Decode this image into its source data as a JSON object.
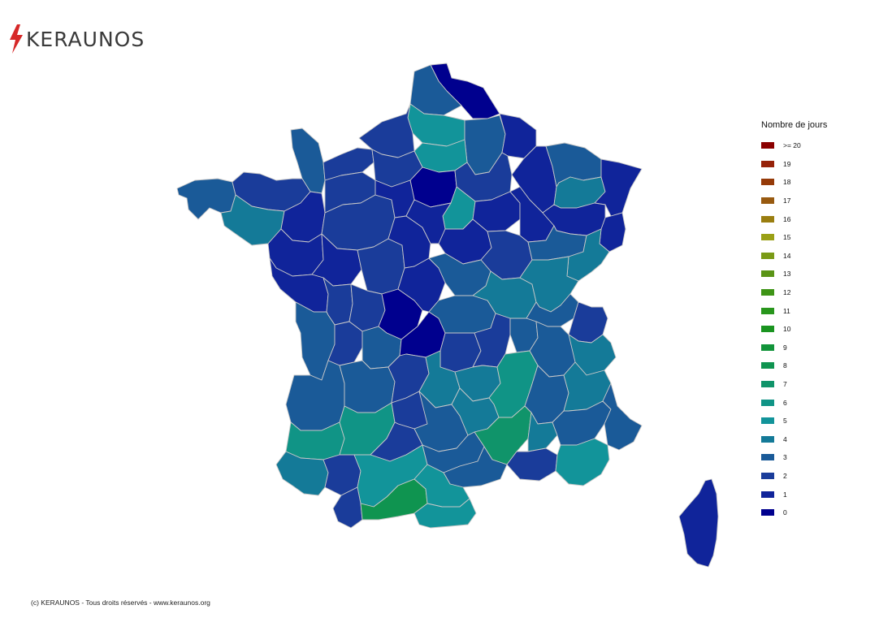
{
  "brand": {
    "name": "KERAUNOS",
    "accent": "#d62828"
  },
  "legend": {
    "title": "Nombre de jours",
    "items": [
      {
        "label": ">= 20",
        "color": "#8b0000"
      },
      {
        "label": "19",
        "color": "#962209"
      },
      {
        "label": "18",
        "color": "#953a08"
      },
      {
        "label": "17",
        "color": "#985a10"
      },
      {
        "label": "16",
        "color": "#9a7e10"
      },
      {
        "label": "15",
        "color": "#9aa016"
      },
      {
        "label": "14",
        "color": "#7a9a16"
      },
      {
        "label": "13",
        "color": "#5a9416"
      },
      {
        "label": "12",
        "color": "#3e9416"
      },
      {
        "label": "11",
        "color": "#28961c"
      },
      {
        "label": "10",
        "color": "#1a9420"
      },
      {
        "label": "9",
        "color": "#12943a"
      },
      {
        "label": "8",
        "color": "#0f9450"
      },
      {
        "label": "7",
        "color": "#10946a"
      },
      {
        "label": "6",
        "color": "#109486"
      },
      {
        "label": "5",
        "color": "#12949a"
      },
      {
        "label": "4",
        "color": "#147a98"
      },
      {
        "label": "3",
        "color": "#1a5a98"
      },
      {
        "label": "2",
        "color": "#1a3c9a"
      },
      {
        "label": "1",
        "color": "#10249a"
      },
      {
        "label": "0",
        "color": "#00008e"
      }
    ]
  },
  "map": {
    "border_color": "#c8c8c8",
    "regions": [
      {
        "name": "nord",
        "value": 0
      },
      {
        "name": "pas-de-calais",
        "value": 3
      },
      {
        "name": "somme",
        "value": 5
      },
      {
        "name": "aisne",
        "value": 3
      },
      {
        "name": "ardennes",
        "value": 1
      },
      {
        "name": "seine-maritime",
        "value": 2
      },
      {
        "name": "oise",
        "value": 5
      },
      {
        "name": "manche",
        "value": 3
      },
      {
        "name": "calvados",
        "value": 2
      },
      {
        "name": "eure",
        "value": 2
      },
      {
        "name": "ile-de-france",
        "value": 0
      },
      {
        "name": "marne",
        "value": 2
      },
      {
        "name": "meuse",
        "value": 1
      },
      {
        "name": "moselle",
        "value": 3
      },
      {
        "name": "meurthe-et-moselle",
        "value": 4
      },
      {
        "name": "bas-rhin",
        "value": 1
      },
      {
        "name": "haut-rhin",
        "value": 1
      },
      {
        "name": "finistere",
        "value": 3
      },
      {
        "name": "cotes-d-armor",
        "value": 2
      },
      {
        "name": "morbihan",
        "value": 4
      },
      {
        "name": "ille-et-vilaine",
        "value": 1
      },
      {
        "name": "orne",
        "value": 2
      },
      {
        "name": "mayenne-sarthe",
        "value": 2
      },
      {
        "name": "eure-et-loir",
        "value": 1
      },
      {
        "name": "seine-et-marne",
        "value": 5
      },
      {
        "name": "aube",
        "value": 1
      },
      {
        "name": "haute-marne",
        "value": 1
      },
      {
        "name": "vosges",
        "value": 1
      },
      {
        "name": "loire-atlantique",
        "value": 1
      },
      {
        "name": "maine-et-loire",
        "value": 1
      },
      {
        "name": "indre-et-loire",
        "value": 2
      },
      {
        "name": "loir-et-cher",
        "value": 1
      },
      {
        "name": "loiret",
        "value": 1
      },
      {
        "name": "yonne",
        "value": 1
      },
      {
        "name": "cote-d-or",
        "value": 2
      },
      {
        "name": "haute-saone",
        "value": 3
      },
      {
        "name": "doubs",
        "value": 4
      },
      {
        "name": "vendee",
        "value": 1
      },
      {
        "name": "deux-sevres",
        "value": 2
      },
      {
        "name": "vienne",
        "value": 2
      },
      {
        "name": "indre",
        "value": 0
      },
      {
        "name": "cher",
        "value": 1
      },
      {
        "name": "nievre",
        "value": 3
      },
      {
        "name": "saone-et-loire",
        "value": 4
      },
      {
        "name": "jura",
        "value": 4
      },
      {
        "name": "ain",
        "value": 3
      },
      {
        "name": "haute-savoie",
        "value": 2
      },
      {
        "name": "charente-maritime",
        "value": 3
      },
      {
        "name": "charente",
        "value": 2
      },
      {
        "name": "haute-vienne",
        "value": 3
      },
      {
        "name": "creuse",
        "value": 0
      },
      {
        "name": "allier",
        "value": 3
      },
      {
        "name": "puy-de-dome",
        "value": 2
      },
      {
        "name": "loire",
        "value": 2
      },
      {
        "name": "rhone",
        "value": 3
      },
      {
        "name": "isere",
        "value": 3
      },
      {
        "name": "savoie",
        "value": 4
      },
      {
        "name": "gironde",
        "value": 3
      },
      {
        "name": "dordogne",
        "value": 3
      },
      {
        "name": "correze",
        "value": 2
      },
      {
        "name": "cantal",
        "value": 4
      },
      {
        "name": "haute-loire",
        "value": 4
      },
      {
        "name": "ardeche",
        "value": 6
      },
      {
        "name": "drome",
        "value": 3
      },
      {
        "name": "hautes-alpes",
        "value": 4
      },
      {
        "name": "landes",
        "value": 6
      },
      {
        "name": "lot-et-garonne",
        "value": 6
      },
      {
        "name": "lot",
        "value": 2
      },
      {
        "name": "aveyron",
        "value": 3
      },
      {
        "name": "lozere",
        "value": 4
      },
      {
        "name": "gard",
        "value": 7
      },
      {
        "name": "vaucluse",
        "value": 4
      },
      {
        "name": "alpes-de-haute-provence",
        "value": 3
      },
      {
        "name": "alpes-maritimes",
        "value": 3
      },
      {
        "name": "pyrenees-atlantiques",
        "value": 4
      },
      {
        "name": "gers",
        "value": 2
      },
      {
        "name": "tarn-et-garonne",
        "value": 2
      },
      {
        "name": "haute-garonne",
        "value": 5
      },
      {
        "name": "tarn",
        "value": 3
      },
      {
        "name": "herault",
        "value": 3
      },
      {
        "name": "bouches-du-rhone",
        "value": 2
      },
      {
        "name": "var",
        "value": 5
      },
      {
        "name": "hautes-pyrenees",
        "value": 2
      },
      {
        "name": "ariege",
        "value": 8
      },
      {
        "name": "aude",
        "value": 5
      },
      {
        "name": "pyrenees-orientales",
        "value": 5
      },
      {
        "name": "corse",
        "value": 1
      }
    ]
  },
  "footer": {
    "text": "(c) KERAUNOS - Tous droits réservés - www.keraunos.org"
  }
}
